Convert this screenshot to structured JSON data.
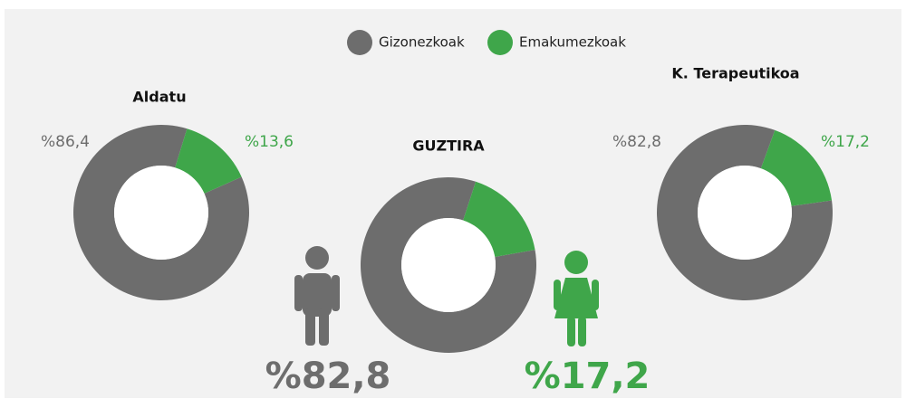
{
  "legend": {
    "names": [
      "Gizonezkoak",
      "Emakumezkoak"
    ],
    "colors": [
      "#6d6d6d",
      "#3fa64a"
    ]
  },
  "chart_data": [
    {
      "type": "donut",
      "title": "Aldatu",
      "values": [
        86.4,
        13.6
      ],
      "value_labels": [
        "%86,4",
        "%13,6"
      ]
    },
    {
      "type": "donut",
      "title": "GUZTIRA",
      "values": [
        82.8,
        17.2
      ],
      "value_labels": [
        "%82,8",
        "%17,2"
      ]
    },
    {
      "type": "donut",
      "title": "K. Terapeutikoa",
      "values": [
        82.8,
        17.2
      ],
      "value_labels": [
        "%82,8",
        "%17,2"
      ]
    }
  ]
}
